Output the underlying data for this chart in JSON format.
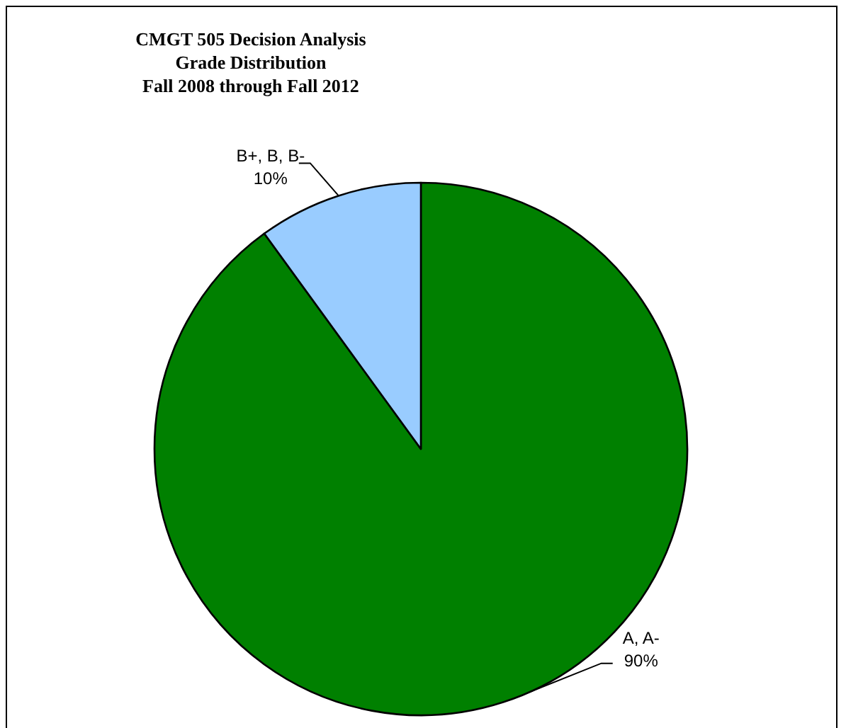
{
  "chart_data": {
    "type": "pie",
    "title": "CMGT 505 Decision Analysis\nGrade Distribution\nFall 2008 through Fall 2012",
    "categories": [
      "A, A-",
      "B+, B, B-"
    ],
    "values": [
      90,
      10
    ],
    "colors": [
      "#008000",
      "#99ccff"
    ],
    "value_labels": [
      "90%",
      "10%"
    ]
  }
}
